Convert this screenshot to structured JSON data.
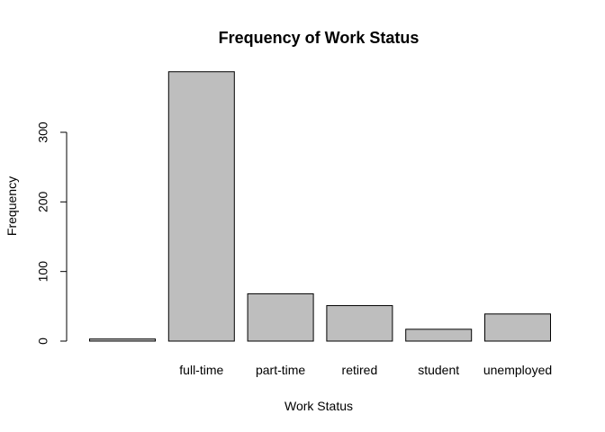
{
  "chart_data": {
    "type": "bar",
    "title": "Frequency of Work Status",
    "xlabel": "Work Status",
    "ylabel": "Frequency",
    "categories": [
      "",
      "full-time",
      "part-time",
      "retired",
      "student",
      "unemployed"
    ],
    "values": [
      3,
      387,
      68,
      51,
      17,
      39
    ],
    "y_ticks": [
      0,
      100,
      200,
      300
    ],
    "ylim": [
      0,
      400
    ],
    "bar_color": "#bebebe",
    "grid": false,
    "legend": "none"
  }
}
